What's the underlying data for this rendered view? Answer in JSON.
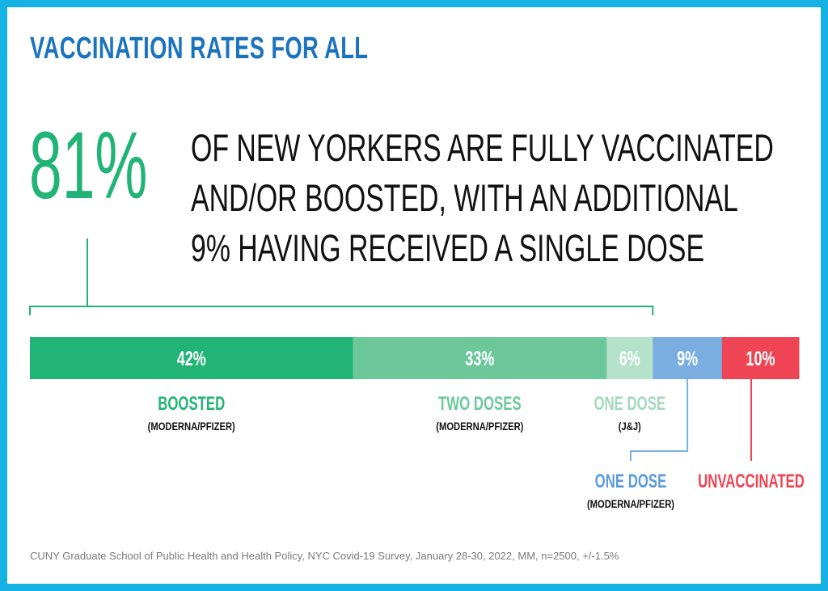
{
  "title": "VACCINATION RATES FOR ALL",
  "headline": {
    "big_number": "81%",
    "lines": [
      "OF NEW YORKERS ARE FULLY VACCINATED",
      "AND/OR BOOSTED, WITH AN ADDITIONAL",
      "9% HAVING RECEIVED A SINGLE DOSE"
    ]
  },
  "source": "CUNY Graduate School of Public Health and Health Policy, NYC Covid-19 Survey, January 28-30, 2022, MM, n=2500, +/-1.5%",
  "colors": {
    "frame": "#15b2e3",
    "title": "#1b73be",
    "accent_green": "#21b476",
    "boosted": "#21b476",
    "two_doses": "#6cc89a",
    "one_dose_jj": "#b5e2cb",
    "one_dose_mp": "#7aaee0",
    "unvaccinated": "#ee4454"
  },
  "chart_data": {
    "type": "bar",
    "orientation": "horizontal-stacked",
    "categories": [
      "BOOSTED",
      "TWO DOSES",
      "ONE DOSE",
      "ONE DOSE",
      "UNVACCINATED"
    ],
    "series": [
      {
        "category": "BOOSTED",
        "sublabel": "(MODERNA/PFIZER)",
        "value": 42,
        "label": "42%",
        "color": "#21b476",
        "label_color": "#21b476"
      },
      {
        "category": "TWO DOSES",
        "sublabel": "(MODERNA/PFIZER)",
        "value": 33,
        "label": "33%",
        "color": "#6cc89a",
        "label_color": "#6cc89a"
      },
      {
        "category": "ONE DOSE",
        "sublabel": "(J&J)",
        "value": 6,
        "label": "6%",
        "color": "#b5e2cb",
        "label_color": "#a4d9bd"
      },
      {
        "category": "ONE DOSE",
        "sublabel": "(MODERNA/PFIZER)",
        "value": 9,
        "label": "9%",
        "color": "#7aaee0",
        "label_color": "#5b9bdc"
      },
      {
        "category": "UNVACCINATED",
        "sublabel": "",
        "value": 10,
        "label": "10%",
        "color": "#ee4454",
        "label_color": "#ee4454"
      }
    ],
    "total": 100,
    "bracket": {
      "label": "81%",
      "spans_first_n_segments": 3
    }
  }
}
